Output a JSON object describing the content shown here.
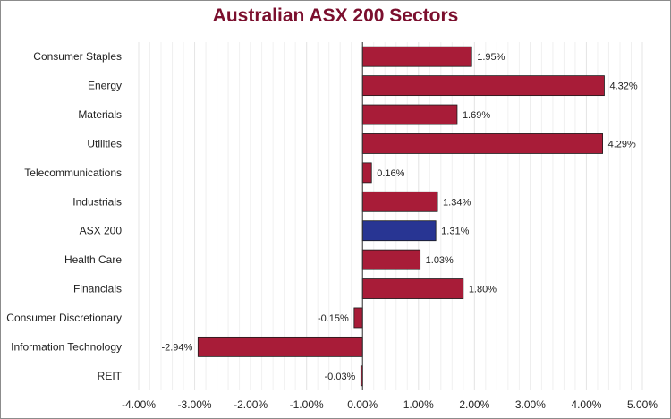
{
  "chart_data": {
    "type": "bar",
    "orientation": "horizontal",
    "title": "Australian ASX 200 Sectors",
    "categories": [
      "Consumer Staples",
      "Energy",
      "Materials",
      "Utilities",
      "Telecommunications",
      "Industrials",
      "ASX 200",
      "Health Care",
      "Financials",
      "Consumer Discretionary",
      "Information Technology",
      "REIT"
    ],
    "values": [
      1.95,
      4.32,
      1.69,
      4.29,
      0.16,
      1.34,
      1.31,
      1.03,
      1.8,
      -0.15,
      -2.94,
      -0.03
    ],
    "data_labels": [
      "1.95%",
      "4.32%",
      "1.69%",
      "4.29%",
      "0.16%",
      "1.34%",
      "1.31%",
      "1.03%",
      "1.80%",
      "-0.15%",
      "-2.94%",
      "-0.03%"
    ],
    "highlight_category": "ASX 200",
    "xlim": [
      -4,
      5
    ],
    "x_ticks": [
      -4,
      -3,
      -2,
      -1,
      0,
      1,
      2,
      3,
      4,
      5
    ],
    "x_tick_labels": [
      "-4.00%",
      "-3.00%",
      "-2.00%",
      "-1.00%",
      "0.00%",
      "1.00%",
      "2.00%",
      "3.00%",
      "4.00%",
      "5.00%"
    ],
    "grid": true,
    "colors": {
      "bar": "#a81c38",
      "highlight_bar": "#283593",
      "title": "#7b0f2e",
      "grid": "#e6e6e6",
      "axis": "#333333",
      "text": "#222222"
    }
  }
}
